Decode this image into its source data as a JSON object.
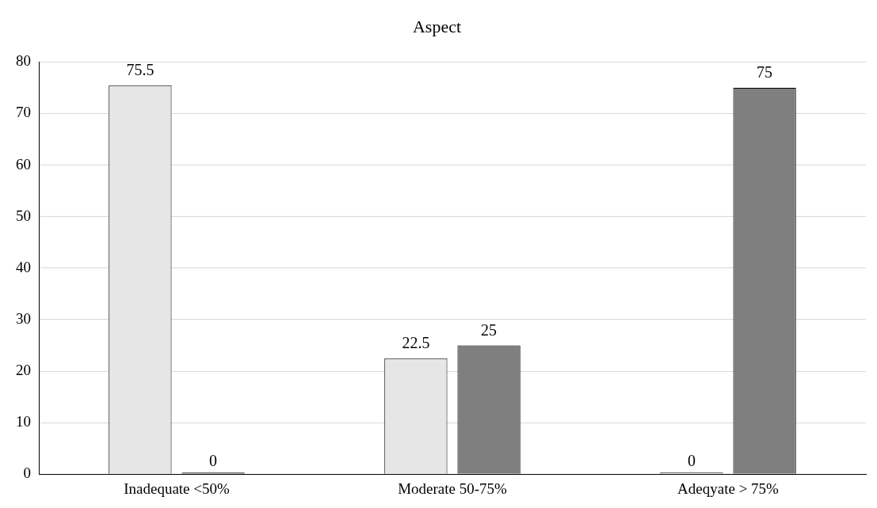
{
  "chart_data": {
    "type": "bar",
    "title": "Aspect",
    "categories": [
      "Inadequate <50%",
      "Moderate 50-75%",
      "Adeqyate > 75%"
    ],
    "series": [
      {
        "color": "#e6e6e6",
        "values": [
          75.5,
          22.5,
          0
        ]
      },
      {
        "color": "#7f7f7f",
        "values": [
          0,
          25,
          75
        ]
      }
    ],
    "ylim": [
      0,
      80
    ],
    "yticks": [
      0,
      10,
      20,
      30,
      40,
      50,
      60,
      70,
      80
    ],
    "grid": "y",
    "data_labels": true
  }
}
